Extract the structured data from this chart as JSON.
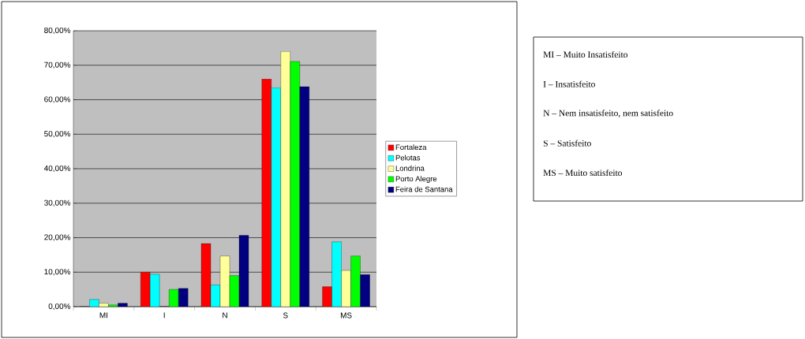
{
  "chart_data": {
    "type": "bar",
    "categories": [
      "MI",
      "I",
      "N",
      "S",
      "MS"
    ],
    "series": [
      {
        "name": "Fortaleza",
        "color": "#ff0000",
        "values": [
          0,
          10,
          18.3,
          66,
          5.8
        ]
      },
      {
        "name": "Pelotas",
        "color": "#00ffff",
        "values": [
          2.1,
          9.4,
          6.3,
          63.5,
          18.8
        ]
      },
      {
        "name": "Londrina",
        "color": "#ffff99",
        "values": [
          1.0,
          0,
          14.7,
          74,
          10.5
        ]
      },
      {
        "name": "Porto Alegre",
        "color": "#00ff00",
        "values": [
          0.5,
          5.0,
          9.0,
          71.1,
          14.7
        ]
      },
      {
        "name": "Feira de Santana",
        "color": "#000080",
        "values": [
          1.0,
          5.3,
          20.7,
          63.8,
          9.3
        ]
      }
    ],
    "ylim": [
      0,
      80
    ],
    "yticks": [
      {
        "value": 0,
        "label": "0,00%"
      },
      {
        "value": 10,
        "label": "10,00%"
      },
      {
        "value": 20,
        "label": "20,00%"
      },
      {
        "value": 30,
        "label": "30,00%"
      },
      {
        "value": 40,
        "label": "40,00%"
      },
      {
        "value": 50,
        "label": "50,00%"
      },
      {
        "value": 60,
        "label": "60,00%"
      },
      {
        "value": 70,
        "label": "70,00%"
      },
      {
        "value": 80,
        "label": "80,00%"
      }
    ],
    "grid": "y",
    "legend": "right",
    "annotations": [
      "MI – Muito Insatisfeito",
      "I – Insatisfeito",
      "N – Nem insatisfeito, nem satisfeito",
      "S – Satisfeito",
      "MS – Muito satisfeito"
    ]
  }
}
